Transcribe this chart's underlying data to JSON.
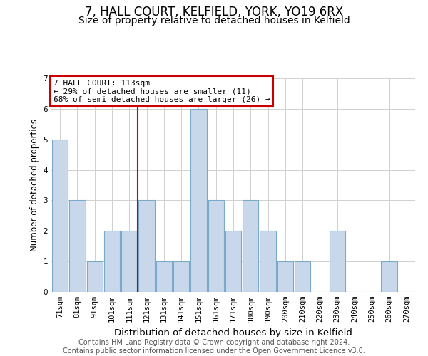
{
  "title": "7, HALL COURT, KELFIELD, YORK, YO19 6RX",
  "subtitle": "Size of property relative to detached houses in Kelfield",
  "xlabel": "Distribution of detached houses by size in Kelfield",
  "ylabel": "Number of detached properties",
  "bin_labels": [
    "71sqm",
    "81sqm",
    "91sqm",
    "101sqm",
    "111sqm",
    "121sqm",
    "131sqm",
    "141sqm",
    "151sqm",
    "161sqm",
    "171sqm",
    "180sqm",
    "190sqm",
    "200sqm",
    "210sqm",
    "220sqm",
    "230sqm",
    "240sqm",
    "250sqm",
    "260sqm",
    "270sqm"
  ],
  "bar_heights": [
    5,
    3,
    1,
    2,
    2,
    3,
    1,
    1,
    6,
    3,
    2,
    3,
    2,
    1,
    1,
    0,
    2,
    0,
    0,
    1,
    0
  ],
  "bar_color": "#c8d8ea",
  "bar_edge_color": "#7aaac8",
  "grid_color": "#d0d0d0",
  "bg_color": "#ffffff",
  "red_line_color": "#cc0000",
  "annotation_title": "7 HALL COURT: 113sqm",
  "annotation_line1": "← 29% of detached houses are smaller (11)",
  "annotation_line2": "68% of semi-detached houses are larger (26) →",
  "annotation_box_color": "#ffffff",
  "annotation_edge_color": "#cc0000",
  "ylim": [
    0,
    7
  ],
  "yticks": [
    0,
    1,
    2,
    3,
    4,
    5,
    6,
    7
  ],
  "footer1": "Contains HM Land Registry data © Crown copyright and database right 2024.",
  "footer2": "Contains public sector information licensed under the Open Government Licence v3.0.",
  "title_fontsize": 12,
  "subtitle_fontsize": 10,
  "xlabel_fontsize": 9.5,
  "ylabel_fontsize": 8.5,
  "tick_fontsize": 7.5,
  "annot_fontsize": 8,
  "footer_fontsize": 7
}
